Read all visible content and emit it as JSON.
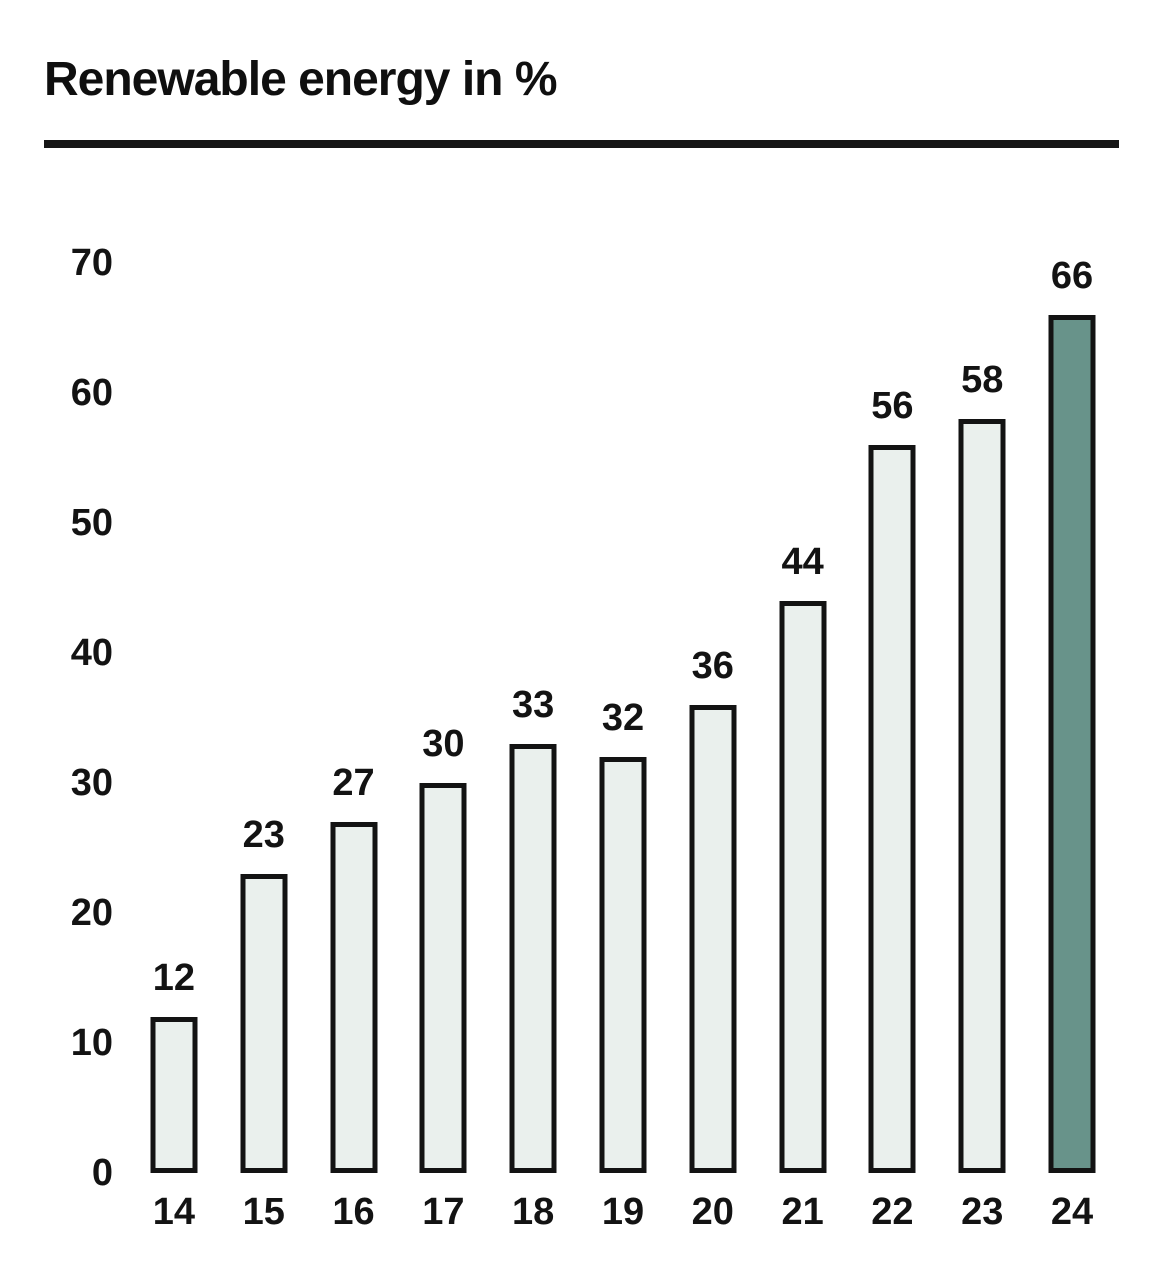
{
  "title": "Renewable energy in %",
  "chart_data": {
    "type": "bar",
    "title": "Renewable energy in %",
    "categories": [
      "14",
      "15",
      "16",
      "17",
      "18",
      "19",
      "20",
      "21",
      "22",
      "23",
      "24"
    ],
    "values": [
      12,
      23,
      27,
      30,
      33,
      32,
      36,
      44,
      56,
      58,
      66
    ],
    "xlabel": "",
    "ylabel": "",
    "ylim": [
      0,
      70
    ],
    "yticks": [
      0,
      10,
      20,
      30,
      40,
      50,
      60,
      70
    ],
    "grid": "off",
    "legend": "none",
    "data_labels": "above-bars",
    "highlight_index": 10,
    "colors": {
      "bar_fill": "#eaf0ed",
      "bar_highlight": "#68938a",
      "bar_border": "#131313",
      "text": "#131313",
      "rule": "#161616",
      "background": "#ffffff"
    }
  }
}
